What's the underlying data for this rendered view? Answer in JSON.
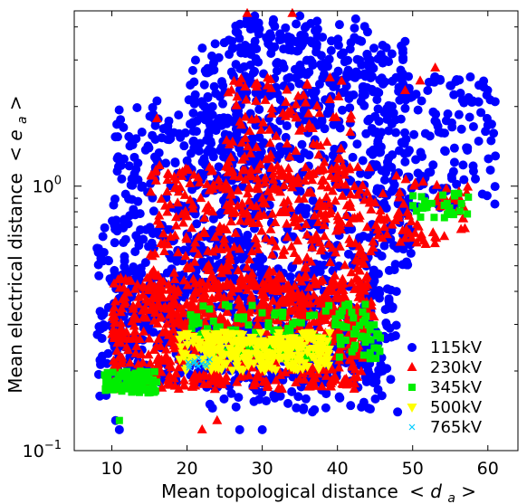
{
  "chart_data": {
    "type": "scatter",
    "xlabel": "Mean topological distance",
    "xlabel_math": "< d",
    "xlabel_sub": "a",
    "xlabel_end": " >",
    "ylabel": "Mean electrical distance",
    "ylabel_math": "< e",
    "ylabel_sub": "a",
    "ylabel_end": " >",
    "x_scale": "linear",
    "y_scale": "log",
    "xlim": [
      5,
      64
    ],
    "ylim": [
      0.1,
      4.6
    ],
    "x_ticks": [
      {
        "value": 10,
        "label": "10"
      },
      {
        "value": 20,
        "label": "20"
      },
      {
        "value": 30,
        "label": "30"
      },
      {
        "value": 40,
        "label": "40"
      },
      {
        "value": 50,
        "label": "50"
      },
      {
        "value": 60,
        "label": "60"
      }
    ],
    "y_ticks": [
      {
        "value": 0.1,
        "base": "10",
        "exp": "−1"
      },
      {
        "value": 1.0,
        "base": "10",
        "exp": "0"
      }
    ],
    "grid": false,
    "legend_position": "bottom-right",
    "series": [
      {
        "name": "115kV",
        "marker": "circle",
        "color": "#0000ff",
        "clusters": [
          {
            "x": [
              10,
              48
            ],
            "y": [
              0.18,
              0.5
            ],
            "n": 520
          },
          {
            "x": [
              10,
              30
            ],
            "y": [
              0.25,
              2.0
            ],
            "n": 420
          },
          {
            "x": [
              20,
              50
            ],
            "y": [
              0.5,
              3.6
            ],
            "n": 520
          },
          {
            "x": [
              26,
              45
            ],
            "y": [
              2.0,
              4.3
            ],
            "n": 140
          },
          {
            "x": [
              44,
              61
            ],
            "y": [
              0.8,
              2.6
            ],
            "n": 160
          },
          {
            "x": [
              22,
              46
            ],
            "y": [
              0.14,
              0.28
            ],
            "n": 130
          },
          {
            "x": [
              8,
              12
            ],
            "y": [
              0.16,
              0.7
            ],
            "n": 60
          }
        ],
        "points": [
          {
            "x": 28,
            "y": 4.3
          },
          {
            "x": 29,
            "y": 4.4
          },
          {
            "x": 35,
            "y": 4.4
          },
          {
            "x": 14,
            "y": 1.6
          },
          {
            "x": 16,
            "y": 2.1
          },
          {
            "x": 11,
            "y": 0.12
          },
          {
            "x": 10.5,
            "y": 0.13
          },
          {
            "x": 27,
            "y": 0.12
          },
          {
            "x": 30,
            "y": 0.12
          },
          {
            "x": 48,
            "y": 0.14
          },
          {
            "x": 46,
            "y": 0.2
          },
          {
            "x": 52,
            "y": 2.3
          },
          {
            "x": 55,
            "y": 2.4
          },
          {
            "x": 58,
            "y": 2.1
          },
          {
            "x": 60,
            "y": 1.7
          },
          {
            "x": 61,
            "y": 1.3
          },
          {
            "x": 56,
            "y": 0.9
          }
        ]
      },
      {
        "name": "230kV",
        "marker": "triangle-up",
        "color": "#ff0000",
        "clusters": [
          {
            "x": [
              10,
              44
            ],
            "y": [
              0.17,
              0.45
            ],
            "n": 700
          },
          {
            "x": [
              15,
              45
            ],
            "y": [
              0.3,
              1.2
            ],
            "n": 460
          },
          {
            "x": [
              25,
              42
            ],
            "y": [
              0.7,
              2.6
            ],
            "n": 160
          },
          {
            "x": [
              45,
              58
            ],
            "y": [
              0.6,
              1.1
            ],
            "n": 70
          }
        ],
        "points": [
          {
            "x": 28,
            "y": 4.5
          },
          {
            "x": 34,
            "y": 4.5
          },
          {
            "x": 53,
            "y": 2.8
          },
          {
            "x": 51,
            "y": 2.5
          },
          {
            "x": 49,
            "y": 2.3
          },
          {
            "x": 16,
            "y": 1.8
          },
          {
            "x": 24,
            "y": 0.13
          },
          {
            "x": 22,
            "y": 0.12
          }
        ]
      },
      {
        "name": "345kV",
        "marker": "square",
        "color": "#00ee00",
        "clusters": [
          {
            "x": [
              9,
              16
            ],
            "y": [
              0.165,
              0.2
            ],
            "n": 90
          },
          {
            "x": [
              20,
              46
            ],
            "y": [
              0.22,
              0.36
            ],
            "n": 160
          },
          {
            "x": [
              50,
              58
            ],
            "y": [
              0.75,
              0.95
            ],
            "n": 30
          }
        ],
        "points": [
          {
            "x": 11,
            "y": 0.13
          }
        ]
      },
      {
        "name": "500kV",
        "marker": "triangle-down",
        "color": "#ffff00",
        "clusters": [
          {
            "x": [
              19,
              39
            ],
            "y": [
              0.2,
              0.28
            ],
            "n": 260
          }
        ],
        "points": []
      },
      {
        "name": "765kV",
        "marker": "x",
        "color": "#00ccff",
        "clusters": [
          {
            "x": [
              20,
              23
            ],
            "y": [
              0.205,
              0.225
            ],
            "n": 14
          }
        ],
        "points": []
      }
    ]
  }
}
